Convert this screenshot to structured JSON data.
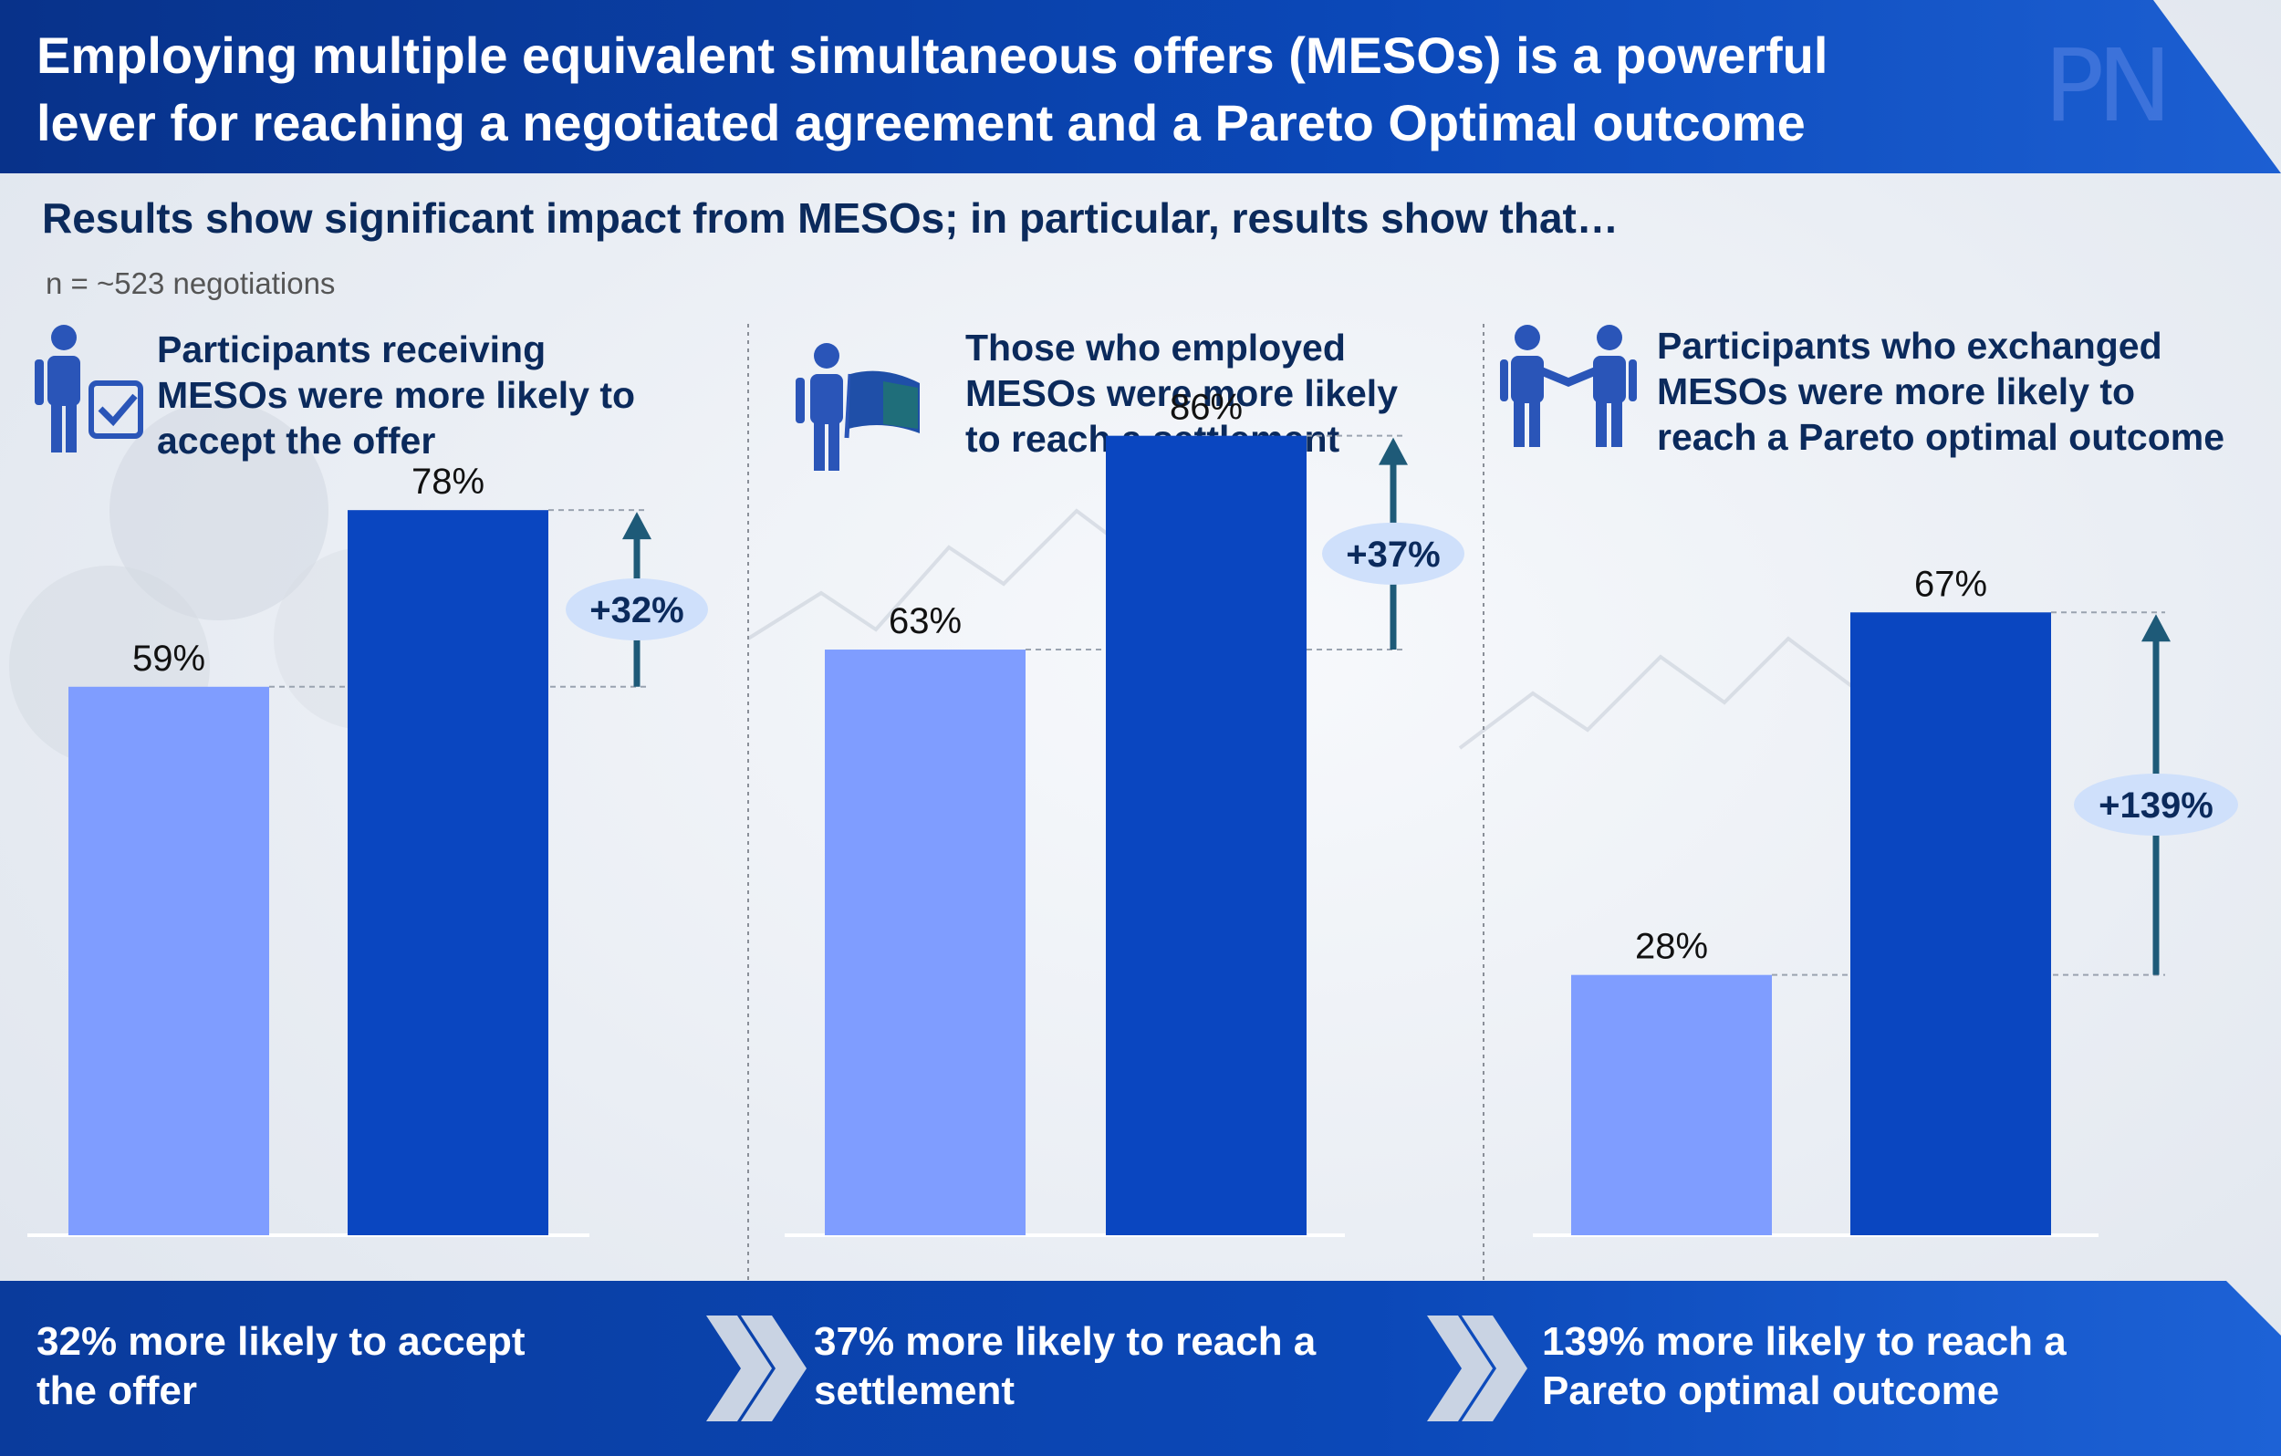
{
  "header": {
    "title_line1": "Employing multiple equivalent simultaneous offers (MESOs) is a powerful",
    "title_line2": "lever for reaching a negotiated agreement and a Pareto Optimal outcome",
    "logo": "PN"
  },
  "subtitle": "Results show significant impact from MESOs; in particular, results show that…",
  "sample_note": "n = ~523 negotiations",
  "panels": [
    {
      "icon": "person-with-checklist-icon",
      "text": [
        "Participants receiving",
        "MESOs were more likely to",
        "accept the offer"
      ]
    },
    {
      "icon": "person-with-flag-icon",
      "text": [
        "Those who employed",
        "MESOs were more likely",
        "to reach a settlement"
      ]
    },
    {
      "icon": "two-people-handshake-icon",
      "text": [
        "Participants who exchanged",
        "MESOs were more likely to",
        "reach a Pareto optimal outcome"
      ]
    }
  ],
  "footer": {
    "items": [
      [
        "32% more likely to accept",
        "the offer"
      ],
      [
        "37% more likely to reach a",
        "settlement"
      ],
      [
        "139% more likely to reach a",
        "Pareto optimal outcome"
      ]
    ]
  },
  "colors": {
    "without_bar": "#7f9dff",
    "with_bar": "#0a46c0",
    "arrow": "#1e5a78",
    "badge": "#cfe0fb",
    "header": "#0a3d9a"
  },
  "chart_data": [
    {
      "type": "bar",
      "categories": [
        "",
        ""
      ],
      "values": [
        59,
        78
      ],
      "value_labels": [
        "59%",
        "78%"
      ],
      "increase_label": "+32%",
      "ylim": [
        0,
        100
      ]
    },
    {
      "type": "bar",
      "categories": [
        "",
        ""
      ],
      "values": [
        63,
        86
      ],
      "value_labels": [
        "63%",
        "86%"
      ],
      "increase_label": "+37%",
      "ylim": [
        0,
        100
      ]
    },
    {
      "type": "bar",
      "categories": [
        "",
        ""
      ],
      "values": [
        28,
        67
      ],
      "value_labels": [
        "28%",
        "67%"
      ],
      "increase_label": "+139%",
      "ylim": [
        0,
        100
      ]
    }
  ]
}
